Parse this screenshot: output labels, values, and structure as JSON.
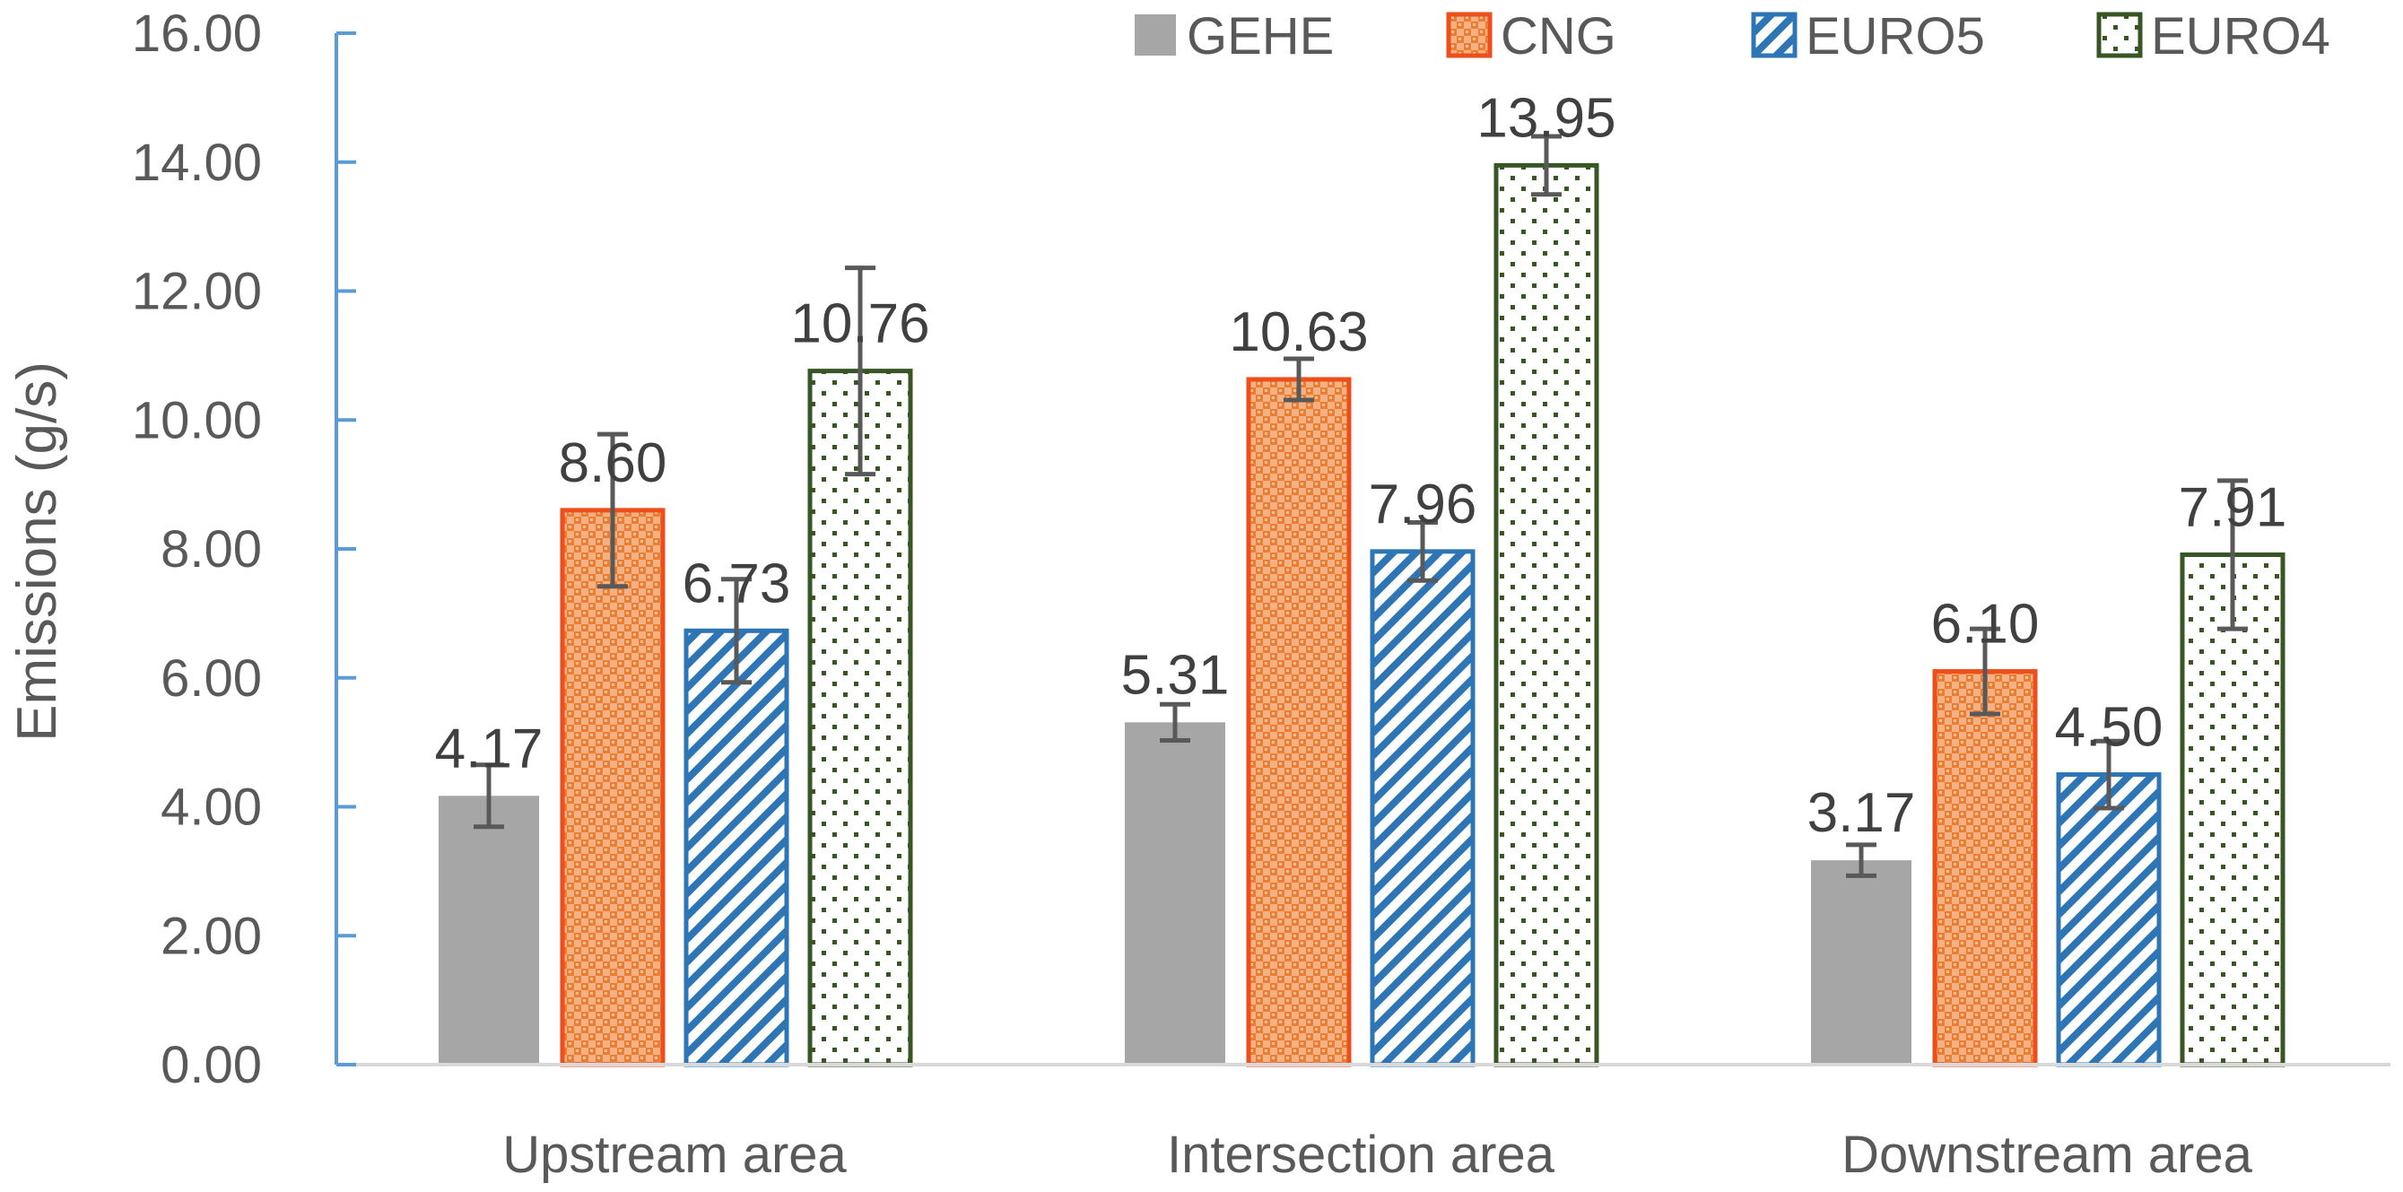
{
  "chart_data": {
    "type": "bar",
    "title": "",
    "xlabel": "",
    "ylabel": "Emissions (g/s)",
    "ylim": [
      0,
      16
    ],
    "yticks": [
      "0.00",
      "2.00",
      "4.00",
      "6.00",
      "8.00",
      "10.00",
      "12.00",
      "14.00",
      "16.00"
    ],
    "categories": [
      "Upstream area",
      "Intersection area",
      "Downstream area"
    ],
    "legend_position": "top-right",
    "series": [
      {
        "name": "GEHE",
        "values": [
          4.17,
          5.31,
          3.17
        ],
        "labels": [
          "4.17",
          "5.31",
          "3.17"
        ],
        "error": [
          0.48,
          0.28,
          0.24
        ],
        "color": "#a6a6a6",
        "pattern": "solid"
      },
      {
        "name": "CNG",
        "values": [
          8.6,
          10.63,
          6.1
        ],
        "labels": [
          "8.60",
          "10.63",
          "6.10"
        ],
        "error": [
          1.18,
          0.32,
          0.66
        ],
        "color": "#ed4e1c",
        "pattern": "checker"
      },
      {
        "name": "EURO5",
        "values": [
          6.73,
          7.96,
          4.5
        ],
        "labels": [
          "6.73",
          "7.96",
          "4.50"
        ],
        "error": [
          0.8,
          0.45,
          0.52
        ],
        "color": "#2e75b6",
        "pattern": "diagonal"
      },
      {
        "name": "EURO4",
        "values": [
          10.76,
          13.95,
          7.91
        ],
        "labels": [
          "10.76",
          "13.95",
          "7.91"
        ],
        "error": [
          1.6,
          0.45,
          1.15
        ],
        "color": "#375623",
        "pattern": "dots"
      }
    ]
  }
}
